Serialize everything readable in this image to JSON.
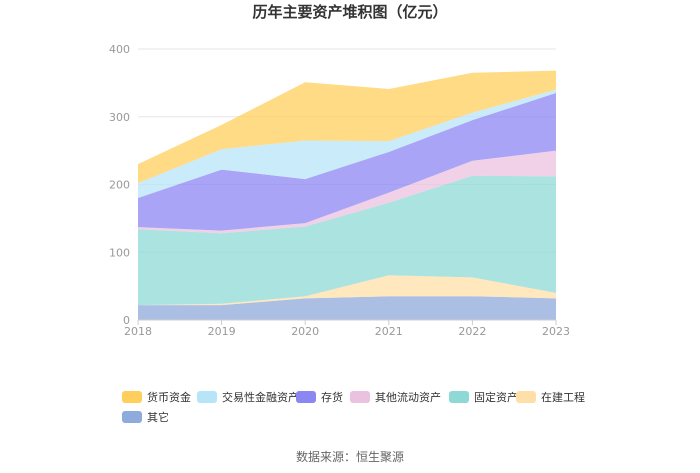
{
  "chart_data": {
    "type": "area",
    "stacked": true,
    "title": "历年主要资产堆积图（亿元）",
    "x": [
      "2018",
      "2019",
      "2020",
      "2021",
      "2022",
      "2023"
    ],
    "ylim": [
      0,
      400
    ],
    "yticks": [
      "0",
      "100",
      "200",
      "300",
      "400"
    ],
    "grid": true,
    "legend_position": "bottom",
    "series": [
      {
        "name": "其它",
        "color": "#8FAADC",
        "values": [
          22,
          22,
          32,
          35,
          35,
          32
        ]
      },
      {
        "name": "在建工程",
        "color": "#FFDFA8",
        "values": [
          0,
          2,
          3,
          31,
          28,
          8
        ]
      },
      {
        "name": "固定资产",
        "color": "#8ED9D6",
        "values": [
          112,
          104,
          103,
          107,
          150,
          172
        ]
      },
      {
        "name": "其他流动资产",
        "color": "#EBC1E0",
        "values": [
          3,
          4,
          5,
          15,
          22,
          38
        ]
      },
      {
        "name": "存货",
        "color": "#8C86F3",
        "values": [
          43,
          90,
          65,
          60,
          60,
          85
        ]
      },
      {
        "name": "交易性金融资产",
        "color": "#B8E4F8",
        "values": [
          22,
          30,
          57,
          16,
          11,
          5
        ]
      },
      {
        "name": "货币资金",
        "color": "#FFCF5E",
        "values": [
          28,
          36,
          86,
          77,
          59,
          28
        ]
      }
    ]
  },
  "legend_order": [
    "货币资金",
    "交易性金融资产",
    "存货",
    "其他流动资产",
    "固定资产",
    "在建工程",
    "其它"
  ],
  "source_text": "数据来源：恒生聚源"
}
